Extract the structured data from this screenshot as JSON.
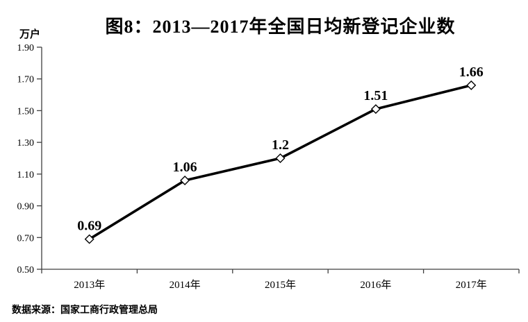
{
  "title": "图8：2013—2017年全国日均新登记企业数",
  "unit_label": "万户",
  "source_note": "数据来源：国家工商行政管理总局",
  "colors": {
    "background": "#ffffff",
    "title_text": "#000000",
    "axis": "#3f3f3f",
    "line": "#000000",
    "marker_fill": "#ffffff",
    "marker_stroke": "#000000",
    "label_text": "#000000"
  },
  "chart_data": {
    "type": "line",
    "title": "图8：2013—2017年全国日均新登记企业数",
    "ylabel": "万户",
    "xlabel": "",
    "categories": [
      "2013年",
      "2014年",
      "2015年",
      "2016年",
      "2017年"
    ],
    "values": [
      0.69,
      1.06,
      1.2,
      1.51,
      1.66
    ],
    "data_labels": [
      "0.69",
      "1.06",
      "1.2",
      "1.51",
      "1.66"
    ],
    "ylim": [
      0.5,
      1.9
    ],
    "ytick_step": 0.2,
    "ytick_labels": [
      "0.50",
      "0.70",
      "0.90",
      "1.10",
      "1.30",
      "1.50",
      "1.70",
      "1.90"
    ],
    "grid": false,
    "legend": "none",
    "marker": "diamond"
  }
}
